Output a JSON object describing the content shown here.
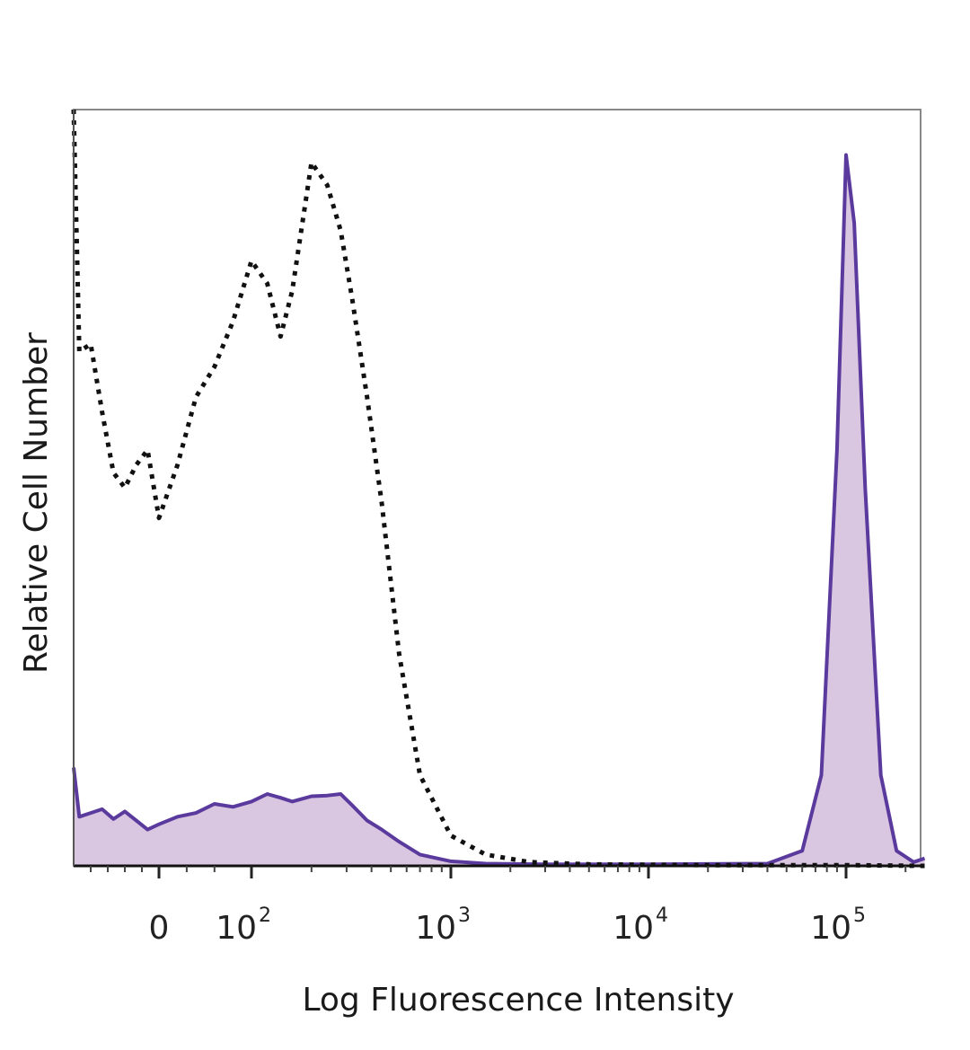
{
  "chart_data": {
    "type": "area",
    "title": "",
    "xlabel": "Log Fluorescence Intensity",
    "ylabel": "Relative Cell Number",
    "x_scale": "biexponential",
    "xlim": [
      -150,
      250000
    ],
    "ylim": [
      0,
      100
    ],
    "grid": false,
    "x_ticks": [
      {
        "base": "0",
        "exp": "",
        "value": 0
      },
      {
        "base": "10",
        "exp": "2",
        "value": 100
      },
      {
        "base": "10",
        "exp": "3",
        "value": 1000
      },
      {
        "base": "10",
        "exp": "4",
        "value": 10000
      },
      {
        "base": "10",
        "exp": "5",
        "value": 100000
      }
    ],
    "series": [
      {
        "style": "dotted",
        "color": "#111111",
        "fill": "none",
        "x": [
          -150,
          -140,
          -120,
          -100,
          -80,
          -60,
          -40,
          -20,
          0,
          20,
          40,
          60,
          80,
          100,
          120,
          140,
          160,
          200,
          240,
          280,
          320,
          380,
          450,
          550,
          700,
          1000,
          1500,
          2500,
          5000,
          20000,
          100000,
          250000
        ],
        "y": [
          100,
          68,
          69,
          60,
          52,
          50,
          53,
          55,
          46,
          53,
          62,
          66,
          72,
          80,
          77,
          70,
          76,
          93,
          90,
          84,
          75,
          62,
          48,
          28,
          12,
          4,
          1.5,
          0.5,
          0.2,
          0.1,
          0.1,
          0
        ]
      },
      {
        "style": "solid",
        "color": "#5b3a9e",
        "fill": "#d9c6e0",
        "x": [
          -150,
          -140,
          -120,
          -100,
          -80,
          -60,
          -40,
          -20,
          0,
          20,
          40,
          60,
          80,
          100,
          120,
          140,
          160,
          200,
          240,
          280,
          320,
          380,
          450,
          550,
          700,
          1000,
          1500,
          3000,
          10000,
          40000,
          60000,
          75000,
          90000,
          100000,
          110000,
          125000,
          150000,
          180000,
          220000,
          250000
        ],
        "y": [
          13,
          6.5,
          7,
          7.5,
          6.2,
          7.2,
          6,
          4.8,
          5.5,
          6.5,
          7,
          8.2,
          7.8,
          8.5,
          9.5,
          9,
          8.5,
          9.2,
          9.3,
          9.5,
          8,
          6,
          4.8,
          3.2,
          1.5,
          0.6,
          0.3,
          0.2,
          0.2,
          0.3,
          2,
          12,
          55,
          94,
          85,
          50,
          12,
          2,
          0.5,
          1
        ]
      }
    ]
  }
}
